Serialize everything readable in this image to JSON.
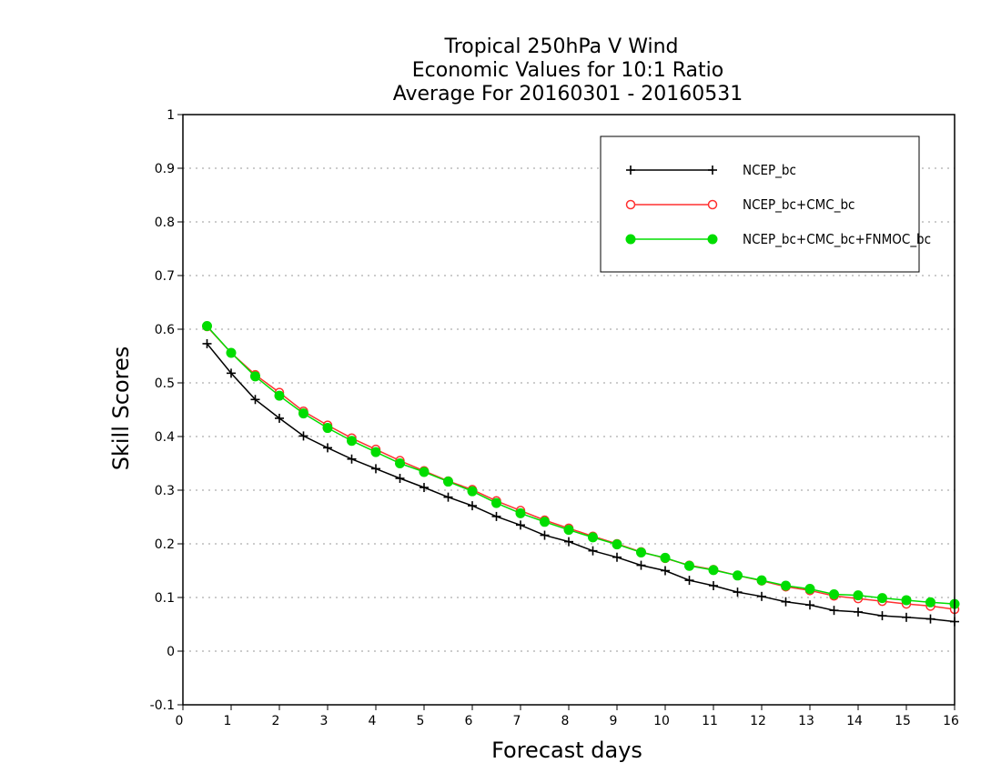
{
  "chart_data": {
    "type": "line",
    "title": [
      "Tropical 250hPa V Wind",
      "Economic Values for 10:1 Ratio",
      "Average For 20160301 - 20160531"
    ],
    "xlabel": "Forecast days",
    "ylabel": "Skill Scores",
    "xlim": [
      0,
      16
    ],
    "ylim": [
      -0.1,
      1
    ],
    "xticks": [
      0,
      1,
      2,
      3,
      4,
      5,
      6,
      7,
      8,
      9,
      10,
      11,
      12,
      13,
      14,
      15,
      16
    ],
    "yticks": [
      -0.1,
      0,
      0.1,
      0.2,
      0.3,
      0.4,
      0.5,
      0.6,
      0.7,
      0.8,
      0.9,
      1
    ],
    "grid": "dotted horizontal",
    "legend_position": "top-right",
    "x": [
      0.5,
      1,
      1.5,
      2,
      2.5,
      3,
      3.5,
      4,
      4.5,
      5,
      5.5,
      6,
      6.5,
      7,
      7.5,
      8,
      8.5,
      9,
      9.5,
      10,
      10.5,
      11,
      11.5,
      12,
      12.5,
      13,
      13.5,
      14,
      14.5,
      15,
      15.5,
      16
    ],
    "series": [
      {
        "name": "NCEP_bc",
        "color": "#000000",
        "marker": "plus",
        "values": [
          0.573,
          0.518,
          0.469,
          0.434,
          0.401,
          0.379,
          0.358,
          0.34,
          0.322,
          0.305,
          0.287,
          0.271,
          0.251,
          0.235,
          0.216,
          0.204,
          0.187,
          0.175,
          0.16,
          0.15,
          0.132,
          0.122,
          0.11,
          0.102,
          0.092,
          0.086,
          0.076,
          0.073,
          0.066,
          0.063,
          0.06,
          0.055
        ]
      },
      {
        "name": "NCEP_bc+CMC_bc",
        "color": "#ff3030",
        "marker": "open-circle",
        "values": [
          0.605,
          0.556,
          0.515,
          0.482,
          0.447,
          0.421,
          0.397,
          0.376,
          0.355,
          0.336,
          0.317,
          0.301,
          0.28,
          0.262,
          0.244,
          0.229,
          0.214,
          0.2,
          0.185,
          0.173,
          0.16,
          0.152,
          0.141,
          0.131,
          0.12,
          0.113,
          0.103,
          0.098,
          0.093,
          0.088,
          0.084,
          0.078
        ]
      },
      {
        "name": "NCEP_bc+CMC_bc+FNMOC_bc",
        "color": "#00dd00",
        "marker": "filled-circle",
        "values": [
          0.606,
          0.556,
          0.512,
          0.476,
          0.443,
          0.416,
          0.392,
          0.371,
          0.35,
          0.334,
          0.316,
          0.298,
          0.276,
          0.257,
          0.241,
          0.226,
          0.212,
          0.199,
          0.184,
          0.174,
          0.159,
          0.151,
          0.141,
          0.132,
          0.122,
          0.116,
          0.106,
          0.104,
          0.099,
          0.095,
          0.091,
          0.088
        ]
      }
    ]
  }
}
